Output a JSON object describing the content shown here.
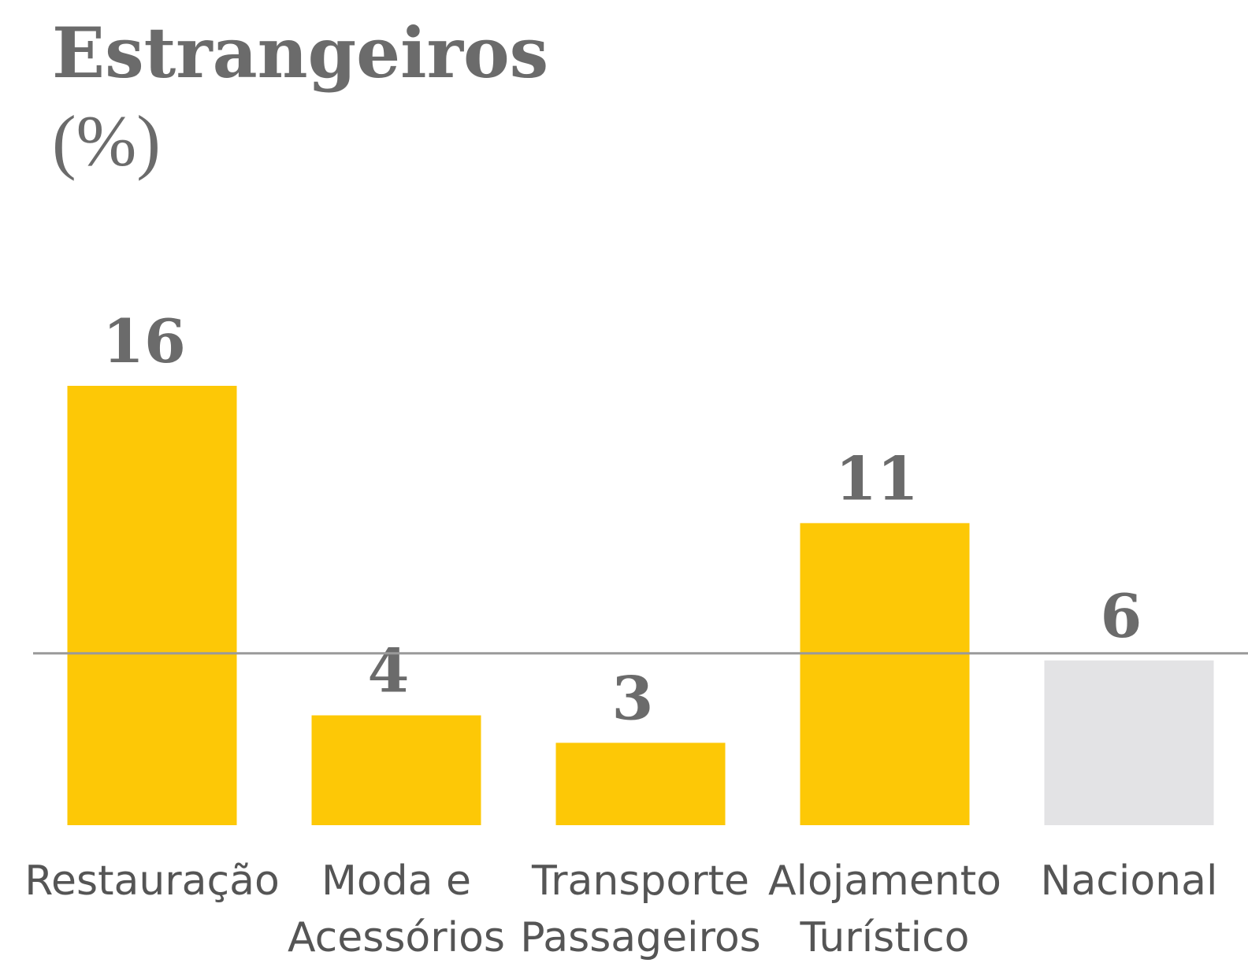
{
  "chart_data": {
    "type": "bar",
    "title": "Estrangeiros",
    "subtitle": "(%)",
    "categories": [
      [
        "Restauração"
      ],
      [
        "Moda e",
        "Acessórios"
      ],
      [
        "Transporte",
        "Passageiros"
      ],
      [
        "Alojamento",
        "Turístico"
      ],
      [
        "Nacional"
      ]
    ],
    "values": [
      16,
      4,
      3,
      11,
      6
    ],
    "colors": [
      "#fdc806",
      "#fdc806",
      "#fdc806",
      "#fdc806",
      "#e3e3e5"
    ],
    "reference_line": {
      "value_of": 4,
      "color": "#9a9a9a"
    }
  }
}
